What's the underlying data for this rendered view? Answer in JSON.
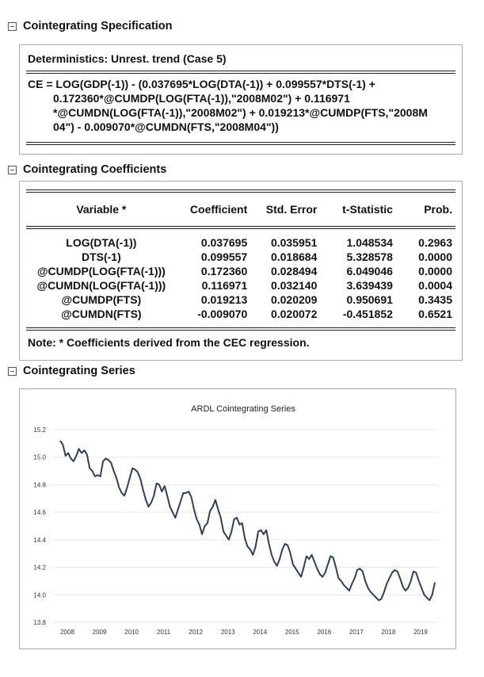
{
  "sections": [
    {
      "title": "Cointegrating Specification"
    },
    {
      "title": "Cointegrating Coefficients"
    },
    {
      "title": "Cointegrating Series"
    }
  ],
  "specification": {
    "deterministics": "Deterministics: Unrest. trend (Case 5)",
    "ce_lines": [
      "CE = LOG(GDP(-1)) - (0.037695*LOG(DTA(-1)) + 0.099557*DTS(-1) +",
      "0.172360*@CUMDP(LOG(FTA(-1)),\"2008M02\") + 0.116971",
      "*@CUMDN(LOG(FTA(-1)),\"2008M02\") + 0.019213*@CUMDP(FTS,\"2008M",
      "04\") - 0.009070*@CUMDN(FTS,\"2008M04\"))"
    ]
  },
  "table": {
    "header": [
      "Variable *",
      "Coefficient",
      "Std. Error",
      "t-Statistic",
      "Prob."
    ],
    "rows": [
      [
        "LOG(DTA(-1))",
        "0.037695",
        "0.035951",
        "1.048534",
        "0.2963"
      ],
      [
        "DTS(-1)",
        "0.099557",
        "0.018684",
        "5.328578",
        "0.0000"
      ],
      [
        "@CUMDP(LOG(FTA(-1)))",
        "0.172360",
        "0.028494",
        "6.049046",
        "0.0000"
      ],
      [
        "@CUMDN(LOG(FTA(-1)))",
        "0.116971",
        "0.032140",
        "3.639439",
        "0.0004"
      ],
      [
        "@CUMDP(FTS)",
        "0.019213",
        "0.020209",
        "0.950691",
        "0.3435"
      ],
      [
        "@CUMDN(FTS)",
        "-0.009070",
        "0.020072",
        "-0.451852",
        "0.6521"
      ]
    ],
    "note": "Note: * Coefficients derived from the CEC regression."
  },
  "chart_data": {
    "type": "line",
    "title": "ARDL Cointegrating Series",
    "categories": [
      "2008",
      null,
      null,
      null,
      null,
      null,
      null,
      null,
      null,
      null,
      null,
      null,
      "2009",
      null,
      null,
      null,
      null,
      null,
      null,
      null,
      null,
      null,
      null,
      null,
      "2010",
      null,
      null,
      null,
      null,
      null,
      null,
      null,
      null,
      null,
      null,
      null,
      "2011",
      null,
      null,
      null,
      null,
      null,
      null,
      null,
      null,
      null,
      null,
      null,
      "2012",
      null,
      null,
      null,
      null,
      null,
      null,
      null,
      null,
      null,
      null,
      null,
      "2013",
      null,
      null,
      null,
      null,
      null,
      null,
      null,
      null,
      null,
      null,
      null,
      "2014",
      null,
      null,
      null,
      null,
      null,
      null,
      null,
      null,
      null,
      null,
      null,
      "2015",
      null,
      null,
      null,
      null,
      null,
      null,
      null,
      null,
      null,
      null,
      null,
      "2016",
      null,
      null,
      null,
      null,
      null,
      null,
      null,
      null,
      null,
      null,
      null,
      "2017",
      null,
      null,
      null,
      null,
      null,
      null,
      null,
      null,
      null,
      null,
      null,
      "2018",
      null,
      null,
      null,
      null,
      null,
      null,
      null,
      null,
      null,
      null,
      null,
      "2019",
      null,
      null,
      null,
      null,
      null,
      null,
      null,
      null
    ],
    "series": [
      {
        "color": "#2e3f5c",
        "values": [
          15.12,
          15.09,
          15.01,
          15.03,
          14.99,
          14.97,
          15.01,
          15.06,
          15.03,
          15.05,
          15.02,
          14.92,
          14.9,
          14.86,
          14.87,
          14.86,
          14.97,
          14.99,
          14.98,
          14.96,
          14.9,
          14.85,
          14.78,
          14.74,
          14.72,
          14.78,
          14.85,
          14.92,
          14.91,
          14.89,
          14.84,
          14.76,
          14.69,
          14.64,
          14.67,
          14.72,
          14.81,
          14.8,
          14.75,
          14.79,
          14.72,
          14.64,
          14.6,
          14.56,
          14.62,
          14.68,
          14.74,
          14.74,
          14.75,
          14.71,
          14.62,
          14.55,
          14.51,
          14.44,
          14.5,
          14.52,
          14.61,
          14.64,
          14.69,
          14.62,
          14.56,
          14.46,
          14.43,
          14.4,
          14.46,
          14.55,
          14.56,
          14.51,
          14.52,
          14.41,
          14.35,
          14.33,
          14.29,
          14.35,
          14.46,
          14.47,
          14.44,
          14.47,
          14.37,
          14.29,
          14.24,
          14.21,
          14.26,
          14.33,
          14.37,
          14.36,
          14.3,
          14.22,
          14.19,
          14.16,
          14.13,
          14.2,
          14.28,
          14.26,
          14.29,
          14.24,
          14.19,
          14.15,
          14.13,
          14.16,
          14.22,
          14.28,
          14.27,
          14.2,
          14.12,
          14.1,
          14.07,
          14.05,
          14.03,
          14.08,
          14.12,
          14.18,
          14.19,
          14.17,
          14.1,
          14.05,
          14.02,
          14.0,
          13.98,
          13.96,
          13.97,
          14.02,
          14.08,
          14.12,
          14.16,
          14.18,
          14.17,
          14.12,
          14.06,
          14.03,
          14.05,
          14.1,
          14.17,
          14.16,
          14.1,
          14.05,
          14.0,
          13.98,
          13.96,
          14.0,
          14.09
        ]
      }
    ],
    "ylim": [
      13.8,
      15.2
    ],
    "yticks": [
      13.8,
      {
        "value": 14,
        "label": "14.0"
      },
      14.2,
      14.4,
      14.6,
      14.8,
      {
        "value": 15,
        "label": "15.0"
      },
      15.2
    ],
    "grid": true
  }
}
